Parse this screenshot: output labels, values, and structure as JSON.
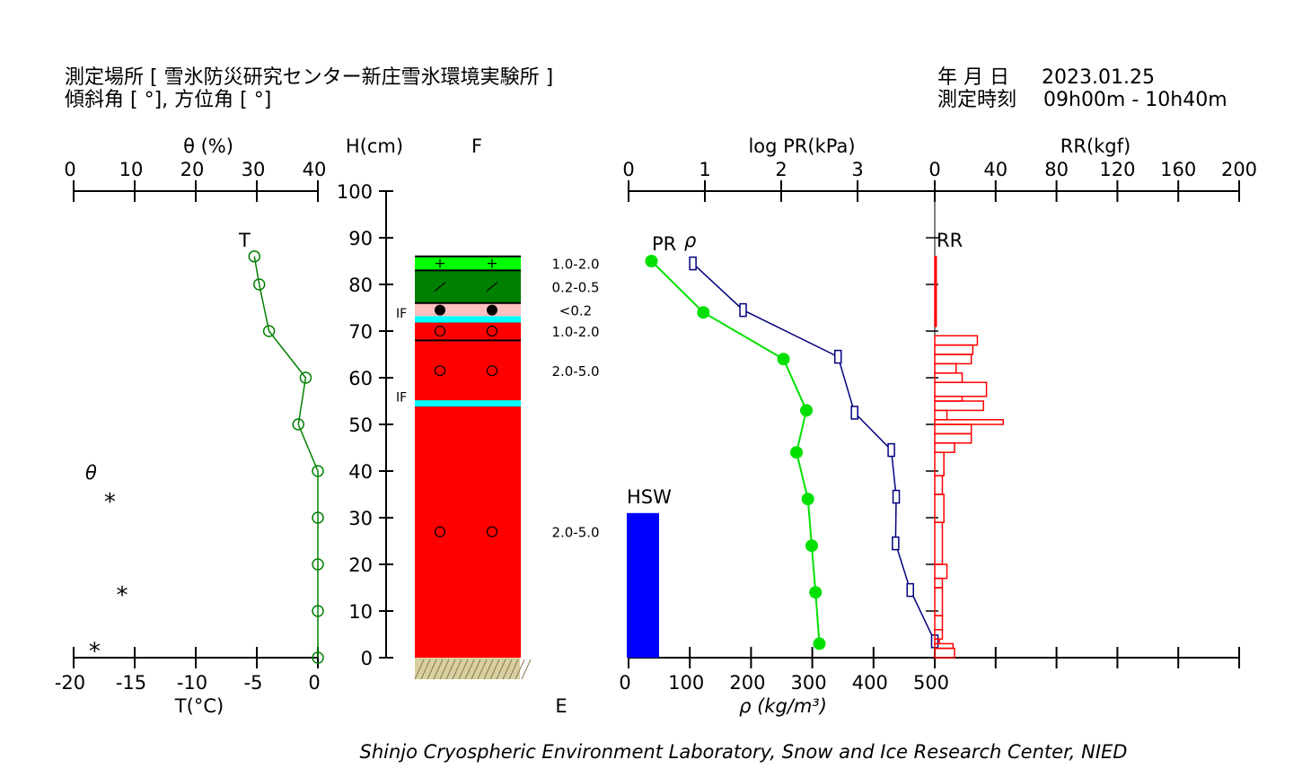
{
  "header": {
    "site_label": "測定場所 [ 雪氷防災研究センター新庄雪氷環境実験所 ]",
    "slope_label": "傾斜角 [ °], 方位角 [ °]",
    "date_label": "年 月 日",
    "date_value": "2023.01.25",
    "time_label": "測定時刻",
    "time_value": "09h00m - 10h40m"
  },
  "footer": {
    "credit": "Shinjo Cryospheric Environment Laboratory, Snow and Ice Research Center, NIED"
  },
  "colors": {
    "temperature": "#008000",
    "pr": "#00e000",
    "density": "#000080",
    "rr": "#ff0000",
    "hsw": "#0000ff",
    "ice_film": "#00ffff"
  },
  "chart_data": [
    {
      "type": "line",
      "name": "temperature-water-panel",
      "top_axis": {
        "label": "θ (%)",
        "ticks": [
          "0",
          "10",
          "20",
          "30",
          "40"
        ],
        "range": [
          0,
          40
        ]
      },
      "bottom_axis": {
        "label": "T(°C)",
        "ticks": [
          "-20",
          "-15",
          "-10",
          "-5",
          "0"
        ],
        "range": [
          -20,
          0
        ]
      },
      "series_label": "T",
      "theta_label": "θ",
      "temperature_points": [
        {
          "h": 86,
          "t": -5.2
        },
        {
          "h": 80,
          "t": -4.8
        },
        {
          "h": 70,
          "t": -4.0
        },
        {
          "h": 60,
          "t": -1.0
        },
        {
          "h": 50,
          "t": -1.6
        },
        {
          "h": 40,
          "t": 0
        },
        {
          "h": 30,
          "t": 0
        },
        {
          "h": 20,
          "t": 0
        },
        {
          "h": 10,
          "t": 0
        },
        {
          "h": 0,
          "t": 0
        }
      ],
      "theta_marker": "*",
      "theta_points": [
        {
          "h": 34,
          "theta": 3
        },
        {
          "h": 14,
          "theta": 5
        },
        {
          "h": 2,
          "theta": 0.5
        }
      ]
    },
    {
      "type": "table",
      "name": "snow-layer-column",
      "height_axis": {
        "label": "H(cm)",
        "ticks": [
          "0",
          "10",
          "20",
          "30",
          "40",
          "50",
          "60",
          "70",
          "80",
          "90",
          "100"
        ],
        "range": [
          0,
          100
        ]
      },
      "column_label_top": "F",
      "column_label_bottom": "E",
      "layers": [
        {
          "bottom": 83,
          "top": 86,
          "color": "#00ff00",
          "symbol": "+",
          "grain_size": "1.0-2.0"
        },
        {
          "bottom": 76,
          "top": 83,
          "color": "#008000",
          "symbol": "/",
          "grain_size": "0.2-0.5"
        },
        {
          "bottom": 73,
          "top": 76,
          "color": "#ffc0c0",
          "symbol": "●",
          "grain_size": "<0.2"
        },
        {
          "bottom": 68,
          "top": 72,
          "color": "#ff0000",
          "symbol": "○",
          "grain_size": "1.0-2.0"
        },
        {
          "bottom": 55,
          "top": 68,
          "color": "#ff0000",
          "symbol": "○",
          "grain_size": "2.0-5.0"
        },
        {
          "bottom": 0,
          "top": 54,
          "color": "#ff0000",
          "symbol": "○",
          "grain_size": "2.0-5.0"
        }
      ],
      "ice_films": [
        {
          "h": 72.5,
          "label": "IF"
        },
        {
          "h": 54.5,
          "label": "IF"
        }
      ]
    },
    {
      "type": "line",
      "name": "hardness-density-panel",
      "top_axis": {
        "label": "log PR(kPa)",
        "ticks": [
          "0",
          "1",
          "2",
          "3"
        ],
        "range": [
          0,
          4
        ]
      },
      "bottom_axis": {
        "label": "ρ (kg/m³)",
        "ticks": [
          "0",
          "100",
          "200",
          "300",
          "400",
          "500"
        ],
        "range": [
          0,
          500
        ]
      },
      "pr_label": "PR",
      "density_label": "ρ",
      "hsw_label": "HSW",
      "hsw_value": 31,
      "pr_points": [
        {
          "h": 85,
          "log_pr": 0.3
        },
        {
          "h": 74,
          "log_pr": 0.98
        },
        {
          "h": 64,
          "log_pr": 2.03
        },
        {
          "h": 53,
          "log_pr": 2.33
        },
        {
          "h": 44,
          "log_pr": 2.2
        },
        {
          "h": 34,
          "log_pr": 2.35
        },
        {
          "h": 24,
          "log_pr": 2.4
        },
        {
          "h": 14,
          "log_pr": 2.45
        },
        {
          "h": 3,
          "log_pr": 2.5
        }
      ],
      "density_points": [
        {
          "h": 84.5,
          "rho": 105
        },
        {
          "h": 74.5,
          "rho": 187
        },
        {
          "h": 64.5,
          "rho": 342
        },
        {
          "h": 52.5,
          "rho": 369
        },
        {
          "h": 44.5,
          "rho": 429
        },
        {
          "h": 34.5,
          "rho": 437
        },
        {
          "h": 24.5,
          "rho": 436
        },
        {
          "h": 14.5,
          "rho": 460
        },
        {
          "h": 3.5,
          "rho": 500
        }
      ]
    },
    {
      "type": "bar",
      "name": "ram-resistance-panel",
      "top_axis": {
        "label": "RR(kgf)",
        "ticks": [
          "0",
          "40",
          "80",
          "120",
          "160",
          "200"
        ],
        "range": [
          0,
          200
        ]
      },
      "series_label": "RR",
      "bars": [
        {
          "bottom": 74,
          "top": 86,
          "value": 1
        },
        {
          "bottom": 71,
          "top": 74,
          "value": 1
        },
        {
          "bottom": 67,
          "top": 69,
          "value": 28
        },
        {
          "bottom": 65,
          "top": 67,
          "value": 25
        },
        {
          "bottom": 63,
          "top": 65,
          "value": 24
        },
        {
          "bottom": 61,
          "top": 63,
          "value": 14
        },
        {
          "bottom": 59,
          "top": 61,
          "value": 18
        },
        {
          "bottom": 56,
          "top": 59,
          "value": 34
        },
        {
          "bottom": 55,
          "top": 56,
          "value": 18
        },
        {
          "bottom": 53,
          "top": 55,
          "value": 32
        },
        {
          "bottom": 51,
          "top": 53,
          "value": 8
        },
        {
          "bottom": 50,
          "top": 51,
          "value": 45
        },
        {
          "bottom": 48,
          "top": 50,
          "value": 24
        },
        {
          "bottom": 46,
          "top": 48,
          "value": 24
        },
        {
          "bottom": 44,
          "top": 46,
          "value": 13
        },
        {
          "bottom": 39,
          "top": 44,
          "value": 6
        },
        {
          "bottom": 35,
          "top": 39,
          "value": 5
        },
        {
          "bottom": 29,
          "top": 35,
          "value": 6
        },
        {
          "bottom": 20,
          "top": 29,
          "value": 5
        },
        {
          "bottom": 17,
          "top": 20,
          "value": 8
        },
        {
          "bottom": 15,
          "top": 17,
          "value": 5
        },
        {
          "bottom": 9,
          "top": 15,
          "value": 5
        },
        {
          "bottom": 6,
          "top": 9,
          "value": 5
        },
        {
          "bottom": 4,
          "top": 6,
          "value": 5
        },
        {
          "bottom": 3,
          "top": 4,
          "value": 3
        },
        {
          "bottom": 2,
          "top": 3,
          "value": 12
        },
        {
          "bottom": 0,
          "top": 2,
          "value": 13
        }
      ]
    }
  ]
}
